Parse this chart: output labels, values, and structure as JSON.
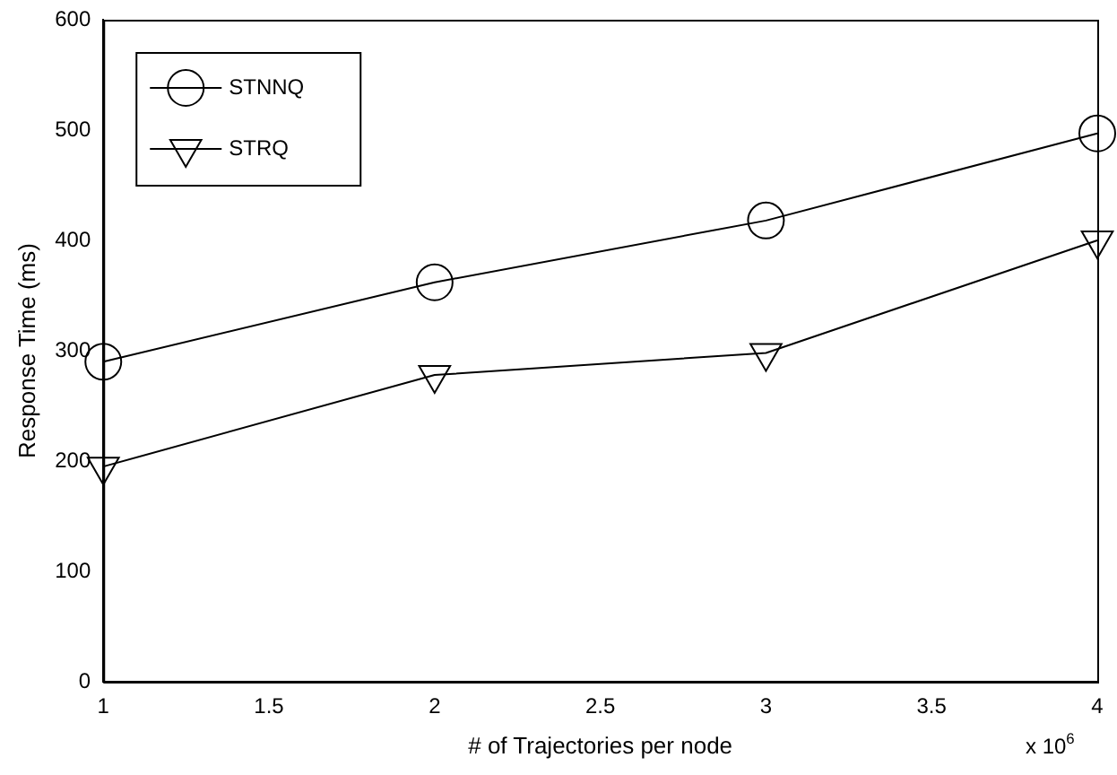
{
  "chart_data": {
    "type": "line",
    "xlabel": "# of Trajectories per node",
    "ylabel": "Response Time (ms)",
    "x": [
      1,
      2,
      3,
      4
    ],
    "series": [
      {
        "name": "STNNQ",
        "color": "#000000",
        "marker": "circle",
        "values": [
          290,
          362,
          418,
          497
        ]
      },
      {
        "name": "STRQ",
        "color": "#000000",
        "marker": "triangle",
        "values": [
          195,
          278,
          298,
          400
        ]
      }
    ],
    "xlim": [
      1,
      4
    ],
    "xticks": [
      1,
      1.5,
      2,
      2.5,
      3,
      3.5,
      4
    ],
    "ylim": [
      0,
      600
    ],
    "yticks": [
      0,
      100,
      200,
      300,
      400,
      500,
      600
    ],
    "grid": false,
    "legend": "top left",
    "line_style": "solid",
    "annotations": [
      "x 10$^{6}$"
    ]
  }
}
